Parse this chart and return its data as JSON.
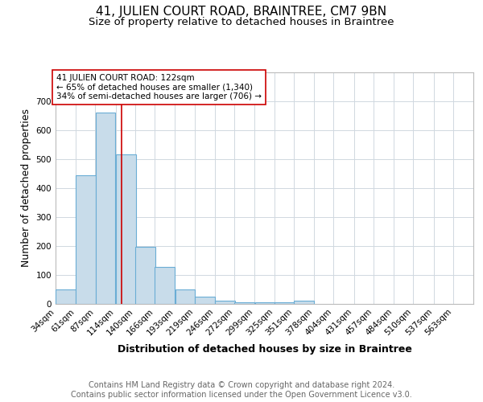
{
  "title": "41, JULIEN COURT ROAD, BRAINTREE, CM7 9BN",
  "subtitle": "Size of property relative to detached houses in Braintree",
  "xlabel": "Distribution of detached houses by size in Braintree",
  "ylabel": "Number of detached properties",
  "bin_labels": [
    "34sqm",
    "61sqm",
    "87sqm",
    "114sqm",
    "140sqm",
    "166sqm",
    "193sqm",
    "219sqm",
    "246sqm",
    "272sqm",
    "299sqm",
    "325sqm",
    "351sqm",
    "378sqm",
    "404sqm",
    "431sqm",
    "457sqm",
    "484sqm",
    "510sqm",
    "537sqm",
    "563sqm"
  ],
  "bin_edges": [
    34,
    61,
    87,
    114,
    140,
    166,
    193,
    219,
    246,
    272,
    299,
    325,
    351,
    378,
    404,
    431,
    457,
    484,
    510,
    537,
    563
  ],
  "bar_heights": [
    50,
    443,
    660,
    515,
    197,
    128,
    50,
    25,
    10,
    5,
    5,
    5,
    10,
    0,
    0,
    0,
    0,
    0,
    0,
    0,
    0
  ],
  "bar_color": "#c8dcea",
  "bar_edge_color": "#6aadd5",
  "property_size": 122,
  "red_line_color": "#cc0000",
  "annotation_text": "41 JULIEN COURT ROAD: 122sqm\n← 65% of detached houses are smaller (1,340)\n34% of semi-detached houses are larger (706) →",
  "annotation_box_color": "#ffffff",
  "annotation_box_edge": "#cc0000",
  "ylim": [
    0,
    800
  ],
  "yticks": [
    0,
    100,
    200,
    300,
    400,
    500,
    600,
    700,
    800
  ],
  "footer": "Contains HM Land Registry data © Crown copyright and database right 2024.\nContains public sector information licensed under the Open Government Licence v3.0.",
  "background_color": "#ffffff",
  "grid_color": "#d0d8e0",
  "title_fontsize": 11,
  "subtitle_fontsize": 9.5,
  "axis_label_fontsize": 9,
  "tick_fontsize": 7.5,
  "annotation_fontsize": 7.5,
  "footer_fontsize": 7
}
